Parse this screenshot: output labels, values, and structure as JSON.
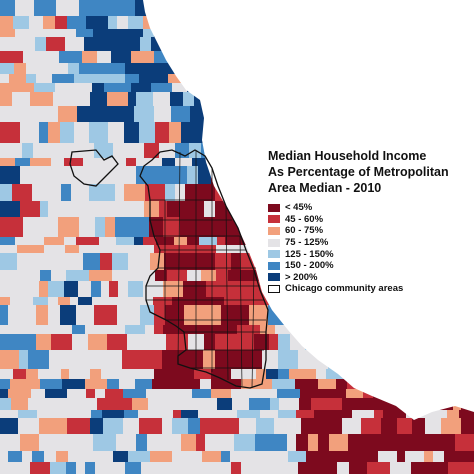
{
  "map": {
    "title_lines": [
      "Median Household Income",
      "As Percentage of Metropolitan",
      "Area Median - 2010"
    ],
    "legend": [
      {
        "label": "< 45%",
        "color": "#7d0a1e",
        "key": "c45"
      },
      {
        "label": "45 - 60%",
        "color": "#c6303a",
        "key": "c60"
      },
      {
        "label": "60 - 75%",
        "color": "#f2a07c",
        "key": "c75"
      },
      {
        "label": "75 - 125%",
        "color": "#e4e3e6",
        "key": "c125"
      },
      {
        "label": "125 - 150%",
        "color": "#9ec8e4",
        "key": "c150"
      },
      {
        "label": "150 - 200%",
        "color": "#3f86c3",
        "key": "c200"
      },
      {
        "label": "> 200%",
        "color": "#0b3d7a",
        "key": "c200p"
      },
      {
        "label": "Chicago community areas",
        "color": "#ffffff",
        "border": "#111111",
        "key": "outline"
      }
    ],
    "lake_color": "#ffffff",
    "community_outline_color": "#111111"
  }
}
